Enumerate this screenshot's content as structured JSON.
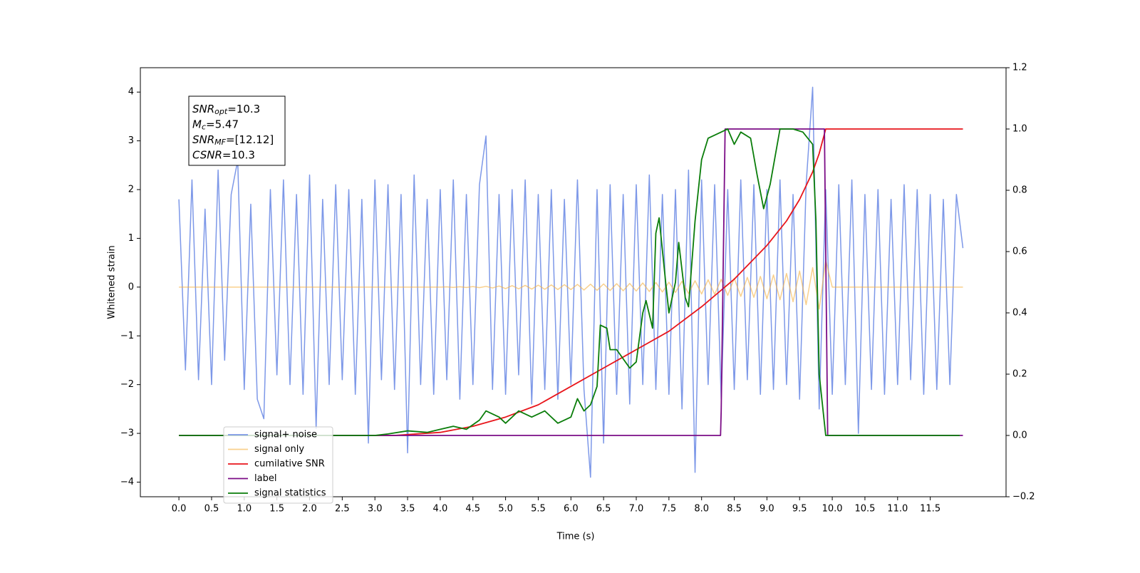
{
  "chart_data": {
    "type": "line",
    "x_label": "Time (s)",
    "y_label": "Whitened strain",
    "xlim": [
      -0.59,
      12.66
    ],
    "ylim": [
      -4.3,
      4.5
    ],
    "y2lim": [
      -0.2,
      1.2
    ],
    "xticks": [
      {
        "value": 0,
        "label": "0.0"
      },
      0.5,
      {
        "value": 1,
        "label": "1.0"
      },
      1.5,
      {
        "value": 2,
        "label": "2.0"
      },
      2.5,
      {
        "value": 3,
        "label": "3.0"
      },
      3.5,
      {
        "value": 4,
        "label": "4.0"
      },
      4.5,
      {
        "value": 5,
        "label": "5.0"
      },
      5.5,
      {
        "value": 6,
        "label": "6.0"
      },
      6.5,
      {
        "value": 7,
        "label": "7.0"
      },
      7.5,
      {
        "value": 8,
        "label": "8.0"
      },
      8.5,
      {
        "value": 9,
        "label": "9.0"
      },
      9.5,
      {
        "value": 10,
        "label": "10.0"
      },
      10.5,
      {
        "value": 11,
        "label": "11.0"
      },
      11.5
    ],
    "yticks": [
      {
        "value": -4,
        "label": "−4"
      },
      {
        "value": -3,
        "label": "−3"
      },
      {
        "value": -2,
        "label": "−2"
      },
      {
        "value": -1,
        "label": "−1"
      },
      0,
      1,
      2,
      3,
      4
    ],
    "y2ticks": [
      {
        "value": -0.2,
        "label": "−0.2"
      },
      {
        "value": 0,
        "label": "0.0"
      },
      0.2,
      0.4,
      0.6,
      0.8,
      {
        "value": 1,
        "label": "1.0"
      },
      1.2
    ],
    "legend_position": "lower left",
    "annotation": [
      {
        "main": "SNR",
        "sub": "opt",
        "rest": "=10.3"
      },
      {
        "main": "M",
        "sub": "c",
        "rest": "=5.47"
      },
      {
        "main": "SNR",
        "sub": "MF",
        "rest": "=[12.12]"
      },
      {
        "main": "CSNR",
        "rest": "=10.3"
      }
    ],
    "x": [
      0,
      0.1,
      0.2,
      0.3,
      0.4,
      0.5,
      0.6,
      0.7,
      0.8,
      0.9,
      1,
      1.1,
      1.2,
      1.3,
      1.4,
      1.5,
      1.6,
      1.7,
      1.8,
      1.9,
      2,
      2.1,
      2.2,
      2.3,
      2.4,
      2.5,
      2.6,
      2.7,
      2.8,
      2.9,
      3,
      3.1,
      3.2,
      3.3,
      3.4,
      3.5,
      3.6,
      3.7,
      3.8,
      3.9,
      4,
      4.1,
      4.2,
      4.3,
      4.4,
      4.5,
      4.6,
      4.7,
      4.8,
      4.9,
      5,
      5.1,
      5.2,
      5.3,
      5.4,
      5.5,
      5.6,
      5.7,
      5.8,
      5.9,
      6,
      6.1,
      6.2,
      6.3,
      6.4,
      6.5,
      6.6,
      6.7,
      6.8,
      6.9,
      7,
      7.1,
      7.2,
      7.3,
      7.4,
      7.5,
      7.6,
      7.7,
      7.8,
      7.9,
      8,
      8.1,
      8.2,
      8.3,
      8.4,
      8.5,
      8.6,
      8.7,
      8.8,
      8.9,
      9,
      9.1,
      9.2,
      9.3,
      9.4,
      9.5,
      9.6,
      9.7,
      9.8,
      9.9,
      10,
      10.1,
      10.2,
      10.3,
      10.4,
      10.5,
      10.6,
      10.7,
      10.8,
      10.9,
      11,
      11.1,
      11.2,
      11.3,
      11.4,
      11.5,
      11.6,
      11.7,
      11.8,
      11.9,
      12
    ],
    "series": [
      {
        "name": "signal+ noise",
        "color": "#6f8de5",
        "values": [
          1.8,
          -1.7,
          2.2,
          -1.9,
          1.6,
          -2.0,
          2.4,
          -1.5,
          1.9,
          2.6,
          -2.1,
          1.7,
          -2.3,
          -2.7,
          2.0,
          -1.8,
          2.2,
          -2.0,
          1.9,
          -2.2,
          2.3,
          -2.9,
          1.8,
          -2.0,
          2.1,
          -1.9,
          2.0,
          -2.2,
          1.8,
          -3.2,
          2.2,
          -1.9,
          2.1,
          -2.1,
          1.9,
          -3.4,
          2.3,
          -2.0,
          1.8,
          -2.2,
          2.0,
          -1.9,
          2.2,
          -2.3,
          1.9,
          -2.0,
          2.1,
          3.1,
          -2.1,
          1.9,
          -2.2,
          2.0,
          -1.8,
          2.2,
          -2.4,
          1.9,
          -2.1,
          2.0,
          -2.3,
          1.8,
          -2.0,
          2.2,
          -2.1,
          -3.9,
          2.0,
          -3.2,
          2.1,
          -2.2,
          1.9,
          -2.4,
          2.1,
          -2.0,
          2.3,
          -2.1,
          1.9,
          -2.2,
          2.0,
          -2.5,
          2.4,
          -3.8,
          2.2,
          -2.0,
          2.1,
          -2.3,
          2.0,
          -2.1,
          2.2,
          -1.9,
          2.1,
          -2.2,
          2.0,
          -2.1,
          2.2,
          -2.0,
          1.9,
          -2.3,
          2.1,
          4.1,
          -2.5,
          2.0,
          -2.2,
          2.1,
          -2.0,
          2.2,
          -3.0,
          1.9,
          -2.1,
          2.0,
          -2.2,
          1.8,
          -2.0,
          2.1,
          -1.9,
          2.0,
          -2.2,
          1.9,
          -2.1,
          1.8,
          -2.0,
          1.9,
          0.8
        ]
      },
      {
        "name": "signal only",
        "color": "#f5b041",
        "values": [
          0,
          0,
          0,
          0,
          0,
          0,
          0,
          0,
          0,
          0,
          0,
          0,
          0,
          0,
          0,
          0,
          0,
          0,
          0,
          0,
          0,
          0,
          0,
          0,
          0,
          0,
          0,
          0,
          0,
          0,
          0,
          0,
          0,
          0,
          0,
          0,
          0,
          0,
          0,
          0,
          0,
          0.005,
          -0.006,
          0.007,
          -0.008,
          0.01,
          -0.012,
          0.015,
          -0.018,
          0.022,
          -0.03,
          0.03,
          -0.035,
          0.035,
          -0.04,
          0.04,
          -0.045,
          0.045,
          -0.05,
          0.05,
          -0.05,
          0.055,
          -0.06,
          0.06,
          -0.065,
          0.065,
          -0.07,
          0.07,
          -0.075,
          0.075,
          -0.08,
          0.085,
          -0.09,
          0.095,
          -0.1,
          0.1,
          -0.11,
          0.12,
          -0.13,
          0.13,
          -0.14,
          0.15,
          -0.15,
          0.16,
          -0.17,
          0.18,
          -0.19,
          0.2,
          -0.21,
          0.22,
          -0.24,
          0.25,
          -0.26,
          0.28,
          -0.3,
          0.33,
          -0.36,
          0.4,
          -0.45,
          0.55,
          0,
          0,
          0,
          0,
          0,
          0,
          0,
          0,
          0,
          0,
          0,
          0,
          0,
          0,
          0,
          0,
          0,
          0,
          0,
          0,
          0
        ]
      },
      {
        "name": "cumilative SNR",
        "color": "#e8151b",
        "axis": "y2",
        "x": [
          0,
          3.3,
          4.0,
          4.5,
          5.0,
          5.5,
          6.0,
          6.5,
          7.0,
          7.5,
          8.0,
          8.5,
          9.0,
          9.3,
          9.5,
          9.7,
          9.8,
          9.9,
          12
        ],
        "values": [
          0,
          0,
          0.01,
          0.03,
          0.06,
          0.1,
          0.16,
          0.22,
          0.28,
          0.34,
          0.42,
          0.51,
          0.62,
          0.7,
          0.77,
          0.86,
          0.92,
          1.0,
          1.0
        ]
      },
      {
        "name": "label",
        "color": "#7b0c86",
        "axis": "y2",
        "x": [
          0,
          8.29,
          8.3,
          8.36,
          9.88,
          9.93,
          12
        ],
        "values": [
          0,
          0,
          0.08,
          1,
          1,
          0,
          0
        ]
      },
      {
        "name": "signal statistics",
        "color": "#0a7d0a",
        "axis": "y2",
        "x": [
          0,
          2.9,
          3.0,
          3.2,
          3.5,
          3.8,
          4.0,
          4.2,
          4.4,
          4.6,
          4.7,
          4.9,
          5.0,
          5.2,
          5.4,
          5.6,
          5.8,
          6.0,
          6.1,
          6.2,
          6.3,
          6.4,
          6.45,
          6.55,
          6.6,
          6.7,
          6.8,
          6.9,
          7.0,
          7.1,
          7.15,
          7.25,
          7.3,
          7.35,
          7.45,
          7.5,
          7.6,
          7.65,
          7.75,
          7.8,
          7.9,
          8.0,
          8.1,
          8.3,
          8.4,
          8.5,
          8.6,
          8.75,
          8.85,
          8.95,
          9.05,
          9.2,
          9.4,
          9.55,
          9.7,
          9.75,
          9.8,
          9.9,
          11.95
        ],
        "values": [
          0,
          0,
          0,
          0.005,
          0.015,
          0.01,
          0.02,
          0.03,
          0.02,
          0.05,
          0.08,
          0.06,
          0.04,
          0.08,
          0.06,
          0.08,
          0.04,
          0.06,
          0.12,
          0.08,
          0.1,
          0.16,
          0.36,
          0.35,
          0.28,
          0.28,
          0.25,
          0.22,
          0.24,
          0.4,
          0.44,
          0.35,
          0.66,
          0.71,
          0.5,
          0.4,
          0.5,
          0.63,
          0.45,
          0.42,
          0.7,
          0.9,
          0.97,
          0.99,
          1.0,
          0.95,
          0.99,
          0.97,
          0.85,
          0.74,
          0.82,
          1.0,
          1.0,
          0.99,
          0.95,
          0.7,
          0.2,
          0.0,
          0.0
        ]
      }
    ]
  }
}
